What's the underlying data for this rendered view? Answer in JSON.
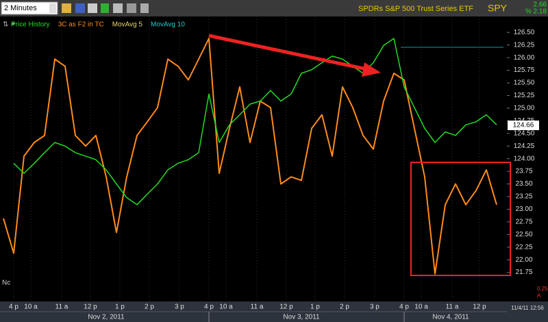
{
  "header": {
    "interval": "2 Minutes",
    "security": "SPDRs S&P 500 Trust Series ETF",
    "symbol": "SPY",
    "change": "2.66",
    "change_pct": "% 2.18"
  },
  "footer": {
    "corner": "Nc",
    "timestamp": "11/4/11 12:56",
    "scale_note": "0.25",
    "scale_letter": "A",
    "dates": [
      "Nov 2, 2011",
      "Nov 3, 2011",
      "Nov 4, 2011"
    ]
  },
  "chart_data": {
    "type": "line",
    "series": [
      {
        "name": "Price History",
        "color": "#22dd22",
        "values": [
          null,
          123.91,
          123.71,
          123.91,
          124.12,
          124.32,
          124.25,
          124.12,
          124.05,
          123.98,
          123.78,
          123.5,
          123.23,
          123.09,
          123.3,
          123.5,
          123.78,
          123.91,
          123.98,
          124.12,
          125.28,
          124.32,
          124.67,
          124.87,
          125.08,
          125.14,
          125.35,
          125.14,
          125.28,
          125.69,
          125.76,
          125.9,
          126.03,
          125.97,
          125.83,
          125.69,
          125.9,
          126.24,
          126.38,
          125.42,
          125.01,
          124.6,
          124.32,
          124.53,
          124.46,
          124.67,
          124.73,
          124.87,
          124.67
        ]
      },
      {
        "name": "3C as F2 in TC",
        "color": "#ff8c1a",
        "values": [
          122.82,
          122.13,
          124.05,
          124.32,
          124.46,
          125.97,
          125.83,
          124.46,
          124.25,
          124.46,
          123.64,
          122.54,
          123.64,
          124.46,
          124.73,
          125.01,
          125.97,
          125.83,
          125.56,
          125.97,
          126.38,
          123.71,
          124.6,
          125.42,
          124.32,
          125.14,
          125.01,
          123.5,
          123.64,
          123.57,
          124.6,
          124.87,
          124.05,
          125.42,
          125.01,
          124.46,
          124.19,
          125.14,
          125.69,
          125.56,
          124.6,
          123.64,
          121.72,
          123.09,
          123.5,
          123.09,
          123.37,
          123.78,
          123.09
        ]
      }
    ],
    "legend_extra": [
      {
        "name": "MovAvg 5",
        "color": "#e8d870"
      },
      {
        "name": "MovAvg 10",
        "color": "#22cccc"
      }
    ],
    "last_price": {
      "value": 124.66,
      "label": "124.66"
    },
    "xlim": [
      -0.33,
      49
    ],
    "xticks": [
      {
        "value": 1,
        "label": "4 p"
      },
      {
        "value": 2.67,
        "label": "10 a"
      },
      {
        "value": 5.67,
        "label": "11 a"
      },
      {
        "value": 8.47,
        "label": "12 p"
      },
      {
        "value": 11.33,
        "label": "1 p"
      },
      {
        "value": 14.2,
        "label": "2 p"
      },
      {
        "value": 17.13,
        "label": "3 p"
      },
      {
        "value": 20,
        "label": "4 p"
      },
      {
        "value": 21.67,
        "label": "10 a"
      },
      {
        "value": 24.67,
        "label": "11 a"
      },
      {
        "value": 27.53,
        "label": "12 p"
      },
      {
        "value": 30.33,
        "label": "1 p"
      },
      {
        "value": 33.2,
        "label": "2 p"
      },
      {
        "value": 36.13,
        "label": "3 p"
      },
      {
        "value": 39,
        "label": "4 p"
      },
      {
        "value": 40.67,
        "label": "10 a"
      },
      {
        "value": 43.67,
        "label": "11 a"
      },
      {
        "value": 46.33,
        "label": "12 p"
      }
    ],
    "ylim": [
      121.175,
      126.815
    ],
    "yticks": [
      {
        "value": 126.5,
        "label": "126.50"
      },
      126.25,
      {
        "value": 126,
        "label": "126.00"
      },
      125.75,
      {
        "value": 125.5,
        "label": "125.50"
      },
      125.25,
      {
        "value": 125,
        "label": "125.00"
      },
      124.75,
      {
        "value": 124.5,
        "label": "124.50"
      },
      124.25,
      {
        "value": 124,
        "label": "124.00"
      },
      {
        "value": 123.75,
        "label": "23.75"
      },
      {
        "value": 123.5,
        "label": "23.50"
      },
      {
        "value": 123.25,
        "label": "23.25"
      },
      {
        "value": 123,
        "label": "23.00"
      },
      {
        "value": 122.75,
        "label": "22.75"
      },
      {
        "value": 122.5,
        "label": "22.50"
      },
      {
        "value": 122.25,
        "label": "22.25"
      },
      {
        "value": 122,
        "label": "22.00"
      },
      {
        "value": 121.75,
        "label": "21.75"
      }
    ],
    "grid": true
  }
}
